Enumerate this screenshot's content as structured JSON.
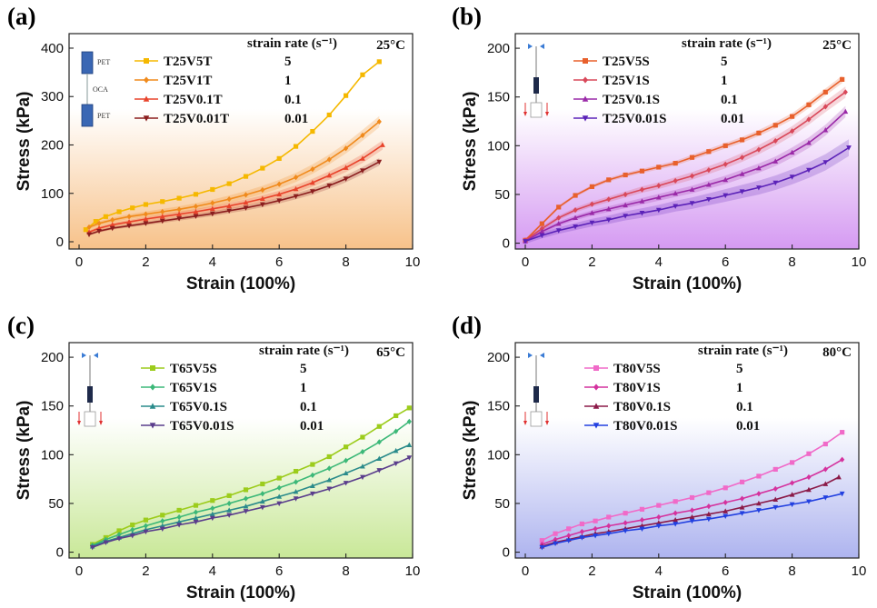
{
  "figure": {
    "panels": [
      "(a)",
      "(b)",
      "(c)",
      "(d)"
    ]
  },
  "chart_data": [
    {
      "type": "line",
      "panel": "(a)",
      "temperature": "25°C",
      "legend_header": "strain rate (s⁻¹)",
      "xlabel": "Strain (100%)",
      "ylabel": "Stress (kPa)",
      "xlim": [
        -0.3,
        10
      ],
      "ylim": [
        -15,
        430
      ],
      "xticks": [
        0,
        2,
        4,
        6,
        8,
        10
      ],
      "yticks": [
        0,
        100,
        200,
        300,
        400
      ],
      "background": {
        "top": "#ffffff",
        "bottom": "#f7c28a"
      },
      "inset": {
        "top_label": "PET",
        "middle_label": "OCA",
        "bottom_label": "PET"
      },
      "series": [
        {
          "name": "T25V5T",
          "rate": "5",
          "color": "#f5b800",
          "marker": "square",
          "x": [
            0.2,
            0.5,
            0.8,
            1.2,
            1.6,
            2.0,
            2.5,
            3.0,
            3.5,
            4.0,
            4.5,
            5.0,
            5.5,
            6.0,
            6.5,
            7.0,
            7.5,
            8.0,
            8.5,
            9.0
          ],
          "y": [
            25,
            42,
            52,
            62,
            70,
            77,
            83,
            90,
            98,
            108,
            120,
            135,
            152,
            172,
            197,
            228,
            262,
            302,
            345,
            372
          ],
          "band": 0
        },
        {
          "name": "T25V1T",
          "rate": "1",
          "color": "#f08a1c",
          "marker": "diamond",
          "x": [
            0.3,
            0.6,
            1.0,
            1.5,
            2.0,
            2.5,
            3.0,
            3.5,
            4.0,
            4.5,
            5.0,
            5.5,
            6.0,
            6.5,
            7.0,
            7.5,
            8.0,
            8.5,
            9.0
          ],
          "y": [
            30,
            38,
            45,
            52,
            57,
            62,
            67,
            73,
            80,
            88,
            97,
            107,
            119,
            133,
            150,
            170,
            193,
            220,
            248
          ],
          "band": 12
        },
        {
          "name": "T25V0.1T",
          "rate": "0.1",
          "color": "#e8432b",
          "marker": "triangle-up",
          "x": [
            0.3,
            0.6,
            1.0,
            1.5,
            2.0,
            2.5,
            3.0,
            3.5,
            4.0,
            4.5,
            5.0,
            5.5,
            6.0,
            6.5,
            7.0,
            7.5,
            8.0,
            8.5,
            9.1
          ],
          "y": [
            20,
            28,
            35,
            41,
            47,
            52,
            57,
            62,
            68,
            74,
            81,
            89,
            98,
            109,
            122,
            137,
            153,
            172,
            200
          ],
          "band": 10
        },
        {
          "name": "T25V0.01T",
          "rate": "0.01",
          "color": "#8b1e1e",
          "marker": "triangle-down",
          "x": [
            0.3,
            0.6,
            1.0,
            1.5,
            2.0,
            2.5,
            3.0,
            3.5,
            4.0,
            4.5,
            5.0,
            5.5,
            6.0,
            6.5,
            7.0,
            7.5,
            8.0,
            8.5,
            9.0
          ],
          "y": [
            15,
            22,
            28,
            33,
            38,
            43,
            48,
            53,
            58,
            64,
            70,
            77,
            85,
            94,
            104,
            116,
            130,
            147,
            165
          ],
          "band": 8
        }
      ]
    },
    {
      "type": "line",
      "panel": "(b)",
      "temperature": "25°C",
      "legend_header": "strain rate (s⁻¹)",
      "xlabel": "Strain (100%)",
      "ylabel": "Stress (kPa)",
      "xlim": [
        -0.3,
        10
      ],
      "ylim": [
        -6,
        215
      ],
      "xticks": [
        0,
        2,
        4,
        6,
        8,
        10
      ],
      "yticks": [
        0,
        50,
        100,
        150,
        200
      ],
      "background": {
        "top": "#ffffff",
        "bottom": "#d59af2"
      },
      "series": [
        {
          "name": "T25V5S",
          "rate": "5",
          "color": "#e8602c",
          "marker": "square",
          "x": [
            0,
            0.5,
            1.0,
            1.5,
            2.0,
            2.5,
            3.0,
            3.5,
            4.0,
            4.5,
            5.0,
            5.5,
            6.0,
            6.5,
            7.0,
            7.5,
            8.0,
            8.5,
            9.0,
            9.5
          ],
          "y": [
            3,
            20,
            37,
            49,
            58,
            65,
            70,
            74,
            78,
            82,
            88,
            94,
            100,
            106,
            113,
            121,
            130,
            142,
            155,
            168
          ],
          "band": 4
        },
        {
          "name": "T25V1S",
          "rate": "1",
          "color": "#d9485a",
          "marker": "diamond",
          "x": [
            0,
            0.5,
            1.0,
            1.5,
            2.0,
            2.5,
            3.0,
            3.5,
            4.0,
            4.5,
            5.0,
            5.5,
            6.0,
            6.5,
            7.0,
            7.5,
            8.0,
            8.5,
            9.0,
            9.6
          ],
          "y": [
            3,
            15,
            26,
            34,
            40,
            45,
            50,
            55,
            59,
            64,
            69,
            75,
            81,
            88,
            96,
            105,
            115,
            127,
            140,
            155
          ],
          "band": 6
        },
        {
          "name": "T25V0.1S",
          "rate": "0.1",
          "color": "#9a2aa8",
          "marker": "triangle-up",
          "x": [
            0,
            0.5,
            1.0,
            1.5,
            2.0,
            2.5,
            3.0,
            3.5,
            4.0,
            4.5,
            5.0,
            5.5,
            6.0,
            6.5,
            7.0,
            7.5,
            8.0,
            8.5,
            9.0,
            9.6
          ],
          "y": [
            2,
            12,
            20,
            26,
            31,
            35,
            39,
            43,
            47,
            51,
            55,
            60,
            65,
            71,
            77,
            84,
            93,
            103,
            116,
            135
          ],
          "band": 6
        },
        {
          "name": "T25V0.01S",
          "rate": "0.01",
          "color": "#5b22b8",
          "marker": "triangle-down",
          "x": [
            0,
            0.5,
            1.0,
            1.5,
            2.0,
            2.5,
            3.0,
            3.5,
            4.0,
            4.5,
            5.0,
            5.5,
            6.0,
            6.5,
            7.0,
            7.5,
            8.0,
            8.5,
            9.0,
            9.7
          ],
          "y": [
            2,
            8,
            13,
            17,
            21,
            24,
            28,
            31,
            34,
            38,
            41,
            45,
            49,
            53,
            57,
            62,
            68,
            75,
            83,
            98
          ],
          "band": 9
        }
      ]
    },
    {
      "type": "line",
      "panel": "(c)",
      "temperature": "65°C",
      "legend_header": "strain rate (s⁻¹)",
      "xlabel": "Strain (100%)",
      "ylabel": "Stress (kPa)",
      "xlim": [
        -0.3,
        10
      ],
      "ylim": [
        -6,
        215
      ],
      "xticks": [
        0,
        2,
        4,
        6,
        8,
        10
      ],
      "yticks": [
        0,
        50,
        100,
        150,
        200
      ],
      "background": {
        "top": "#ffffff",
        "bottom": "#c9e898"
      },
      "series": [
        {
          "name": "T65V5S",
          "rate": "5",
          "color": "#9ccc1c",
          "marker": "square",
          "x": [
            0.4,
            0.8,
            1.2,
            1.6,
            2.0,
            2.5,
            3.0,
            3.5,
            4.0,
            4.5,
            5.0,
            5.5,
            6.0,
            6.5,
            7.0,
            7.5,
            8.0,
            8.5,
            9.0,
            9.5,
            9.9
          ],
          "y": [
            8,
            15,
            22,
            28,
            33,
            38,
            43,
            48,
            53,
            58,
            64,
            70,
            76,
            83,
            90,
            98,
            108,
            118,
            129,
            140,
            148
          ],
          "band": 0
        },
        {
          "name": "T65V1S",
          "rate": "1",
          "color": "#3cb878",
          "marker": "diamond",
          "x": [
            0.4,
            0.8,
            1.2,
            1.6,
            2.0,
            2.5,
            3.0,
            3.5,
            4.0,
            4.5,
            5.0,
            5.5,
            6.0,
            6.5,
            7.0,
            7.5,
            8.0,
            8.5,
            9.0,
            9.5,
            9.9
          ],
          "y": [
            7,
            13,
            18,
            23,
            27,
            32,
            36,
            41,
            45,
            50,
            55,
            60,
            66,
            72,
            79,
            86,
            94,
            103,
            113,
            124,
            134
          ],
          "band": 0
        },
        {
          "name": "T65V0.1S",
          "rate": "0.1",
          "color": "#2a8b8b",
          "marker": "triangle-up",
          "x": [
            0.4,
            0.8,
            1.2,
            1.6,
            2.0,
            2.5,
            3.0,
            3.5,
            4.0,
            4.5,
            5.0,
            5.5,
            6.0,
            6.5,
            7.0,
            7.5,
            8.0,
            8.5,
            9.0,
            9.5,
            9.9
          ],
          "y": [
            6,
            11,
            15,
            19,
            23,
            27,
            31,
            35,
            39,
            43,
            47,
            52,
            57,
            62,
            68,
            74,
            81,
            88,
            96,
            104,
            110
          ],
          "band": 0
        },
        {
          "name": "T65V0.01S",
          "rate": "0.01",
          "color": "#5a3d8c",
          "marker": "triangle-down",
          "x": [
            0.4,
            0.8,
            1.2,
            1.6,
            2.0,
            2.5,
            3.0,
            3.5,
            4.0,
            4.5,
            5.0,
            5.5,
            6.0,
            6.5,
            7.0,
            7.5,
            8.0,
            8.5,
            9.0,
            9.5,
            9.9
          ],
          "y": [
            5,
            10,
            14,
            17,
            21,
            24,
            28,
            31,
            35,
            38,
            42,
            46,
            50,
            55,
            60,
            65,
            71,
            77,
            84,
            91,
            97
          ],
          "band": 0
        }
      ]
    },
    {
      "type": "line",
      "panel": "(d)",
      "temperature": "80°C",
      "legend_header": "strain rate (s⁻¹)",
      "xlabel": "Strain (100%)",
      "ylabel": "Stress (kPa)",
      "xlim": [
        -0.3,
        10
      ],
      "ylim": [
        -6,
        215
      ],
      "xticks": [
        0,
        2,
        4,
        6,
        8,
        10
      ],
      "yticks": [
        0,
        50,
        100,
        150,
        200
      ],
      "background": {
        "top": "#ffffff",
        "bottom": "#aeb4ef"
      },
      "series": [
        {
          "name": "T80V5S",
          "rate": "5",
          "color": "#f06ac8",
          "marker": "square",
          "x": [
            0.5,
            0.9,
            1.3,
            1.7,
            2.1,
            2.5,
            3.0,
            3.5,
            4.0,
            4.5,
            5.0,
            5.5,
            6.0,
            6.5,
            7.0,
            7.5,
            8.0,
            8.5,
            9.0,
            9.5
          ],
          "y": [
            12,
            19,
            24,
            29,
            32,
            36,
            40,
            44,
            48,
            52,
            56,
            61,
            66,
            72,
            78,
            85,
            92,
            101,
            111,
            123
          ],
          "band": 0
        },
        {
          "name": "T80V1S",
          "rate": "1",
          "color": "#d4329e",
          "marker": "diamond",
          "x": [
            0.5,
            0.9,
            1.3,
            1.7,
            2.1,
            2.5,
            3.0,
            3.5,
            4.0,
            4.5,
            5.0,
            5.5,
            6.0,
            6.5,
            7.0,
            7.5,
            8.0,
            8.5,
            9.0,
            9.5
          ],
          "y": [
            8,
            13,
            17,
            21,
            24,
            27,
            30,
            33,
            36,
            40,
            43,
            47,
            51,
            55,
            60,
            65,
            71,
            77,
            85,
            95
          ],
          "band": 0
        },
        {
          "name": "T80V0.1S",
          "rate": "0.1",
          "color": "#8b1a48",
          "marker": "triangle-up",
          "x": [
            0.5,
            0.9,
            1.3,
            1.7,
            2.1,
            2.5,
            3.0,
            3.5,
            4.0,
            4.5,
            5.0,
            5.5,
            6.0,
            6.5,
            7.0,
            7.5,
            8.0,
            8.5,
            9.0,
            9.4
          ],
          "y": [
            6,
            10,
            13,
            16,
            19,
            21,
            24,
            27,
            30,
            33,
            36,
            39,
            42,
            46,
            50,
            54,
            59,
            64,
            70,
            77
          ],
          "band": 0
        },
        {
          "name": "T80V0.01S",
          "rate": "0.01",
          "color": "#2240e0",
          "marker": "triangle-down",
          "x": [
            0.5,
            0.9,
            1.3,
            1.7,
            2.1,
            2.5,
            3.0,
            3.5,
            4.0,
            4.5,
            5.0,
            5.5,
            6.0,
            6.5,
            7.0,
            7.5,
            8.0,
            8.5,
            9.0,
            9.5
          ],
          "y": [
            5,
            9,
            12,
            15,
            17,
            19,
            22,
            24,
            27,
            29,
            32,
            34,
            37,
            40,
            43,
            46,
            49,
            52,
            56,
            60
          ],
          "band": 0
        }
      ]
    }
  ]
}
